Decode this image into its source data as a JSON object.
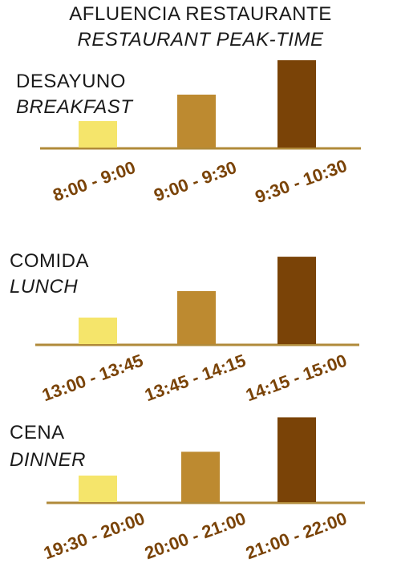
{
  "colors": {
    "low": "#f5e56b",
    "mid": "#bd8a30",
    "high": "#7a4307",
    "axis": "#b08a3a",
    "tick_text": "#7a4307"
  },
  "chart_data": {
    "type": "bar",
    "title": "AFLUENCIA RESTAURANTE",
    "subtitle": "RESTAURANT PEAK-TIME",
    "panels": [
      {
        "label": "DESAYUNO",
        "label_en": "BREAKFAST",
        "categories": [
          "8:00 - 9:00",
          "9:00 - 9:30",
          "9:30 - 10:30"
        ],
        "values": [
          1,
          2,
          3.3
        ]
      },
      {
        "label": "COMIDA",
        "label_en": "LUNCH",
        "categories": [
          "13:00 - 13:45",
          "13:45 - 14:15",
          "14:15 - 15:00"
        ],
        "values": [
          1,
          2,
          3.3
        ]
      },
      {
        "label": "CENA",
        "label_en": "DINNER",
        "categories": [
          "19:30 - 20:00",
          "20:00 - 21:00",
          "21:00 - 22:00"
        ],
        "values": [
          1,
          1.9,
          3.2
        ]
      }
    ],
    "grid": false,
    "legend": "none"
  }
}
